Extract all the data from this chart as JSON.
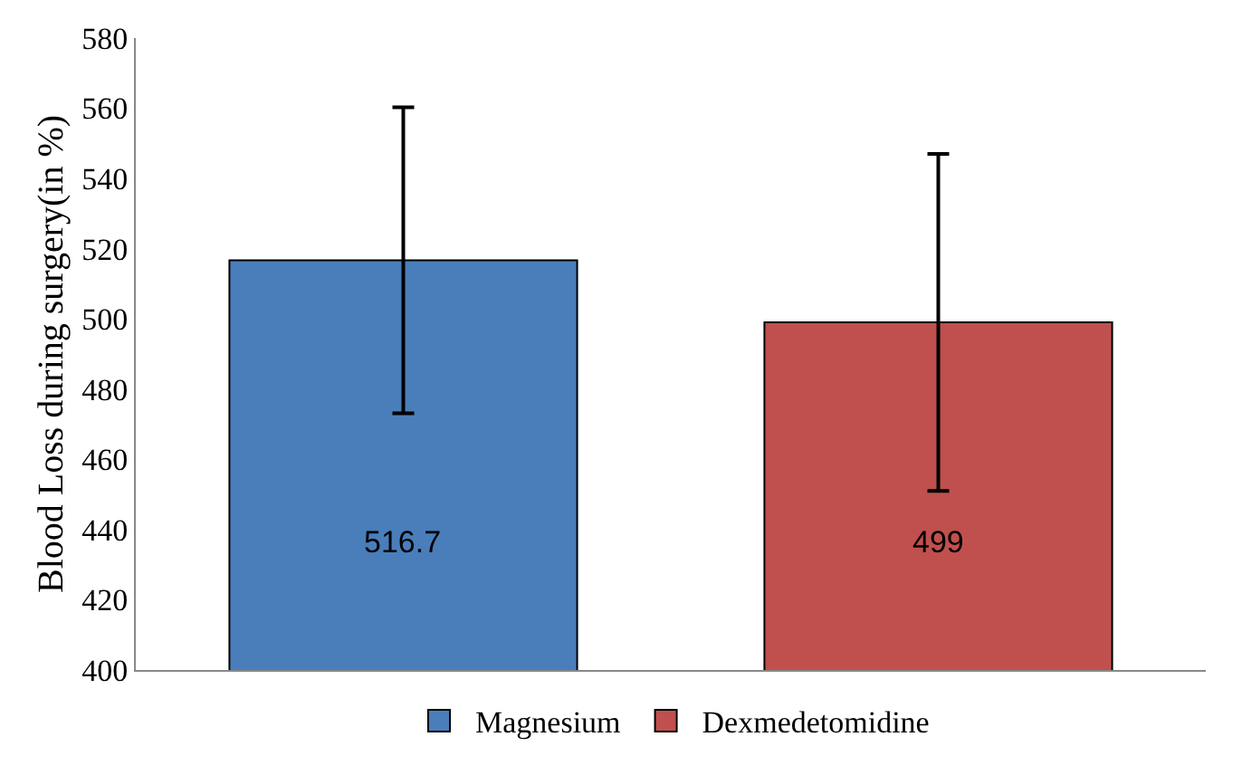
{
  "chart_data": {
    "type": "bar",
    "ylabel": "Blood Loss during surgery(in %)",
    "categories": [
      null,
      null
    ],
    "series": [
      {
        "name": "Magnesium",
        "color": "#4a7ebb",
        "values": [
          516.7,
          null
        ],
        "errors": [
          43.6,
          null
        ],
        "value_labels": [
          "516.7",
          null
        ]
      },
      {
        "name": "Dexmedetomidine",
        "color": "#c0504d",
        "values": [
          null,
          499
        ],
        "errors": [
          null,
          48
        ],
        "value_labels": [
          null,
          "499"
        ]
      }
    ],
    "ylim": [
      400,
      580
    ],
    "yticks": [
      400,
      420,
      440,
      460,
      480,
      500,
      520,
      540,
      560,
      580
    ],
    "grid": false,
    "legend": "bottom",
    "tick_labels": "y"
  }
}
